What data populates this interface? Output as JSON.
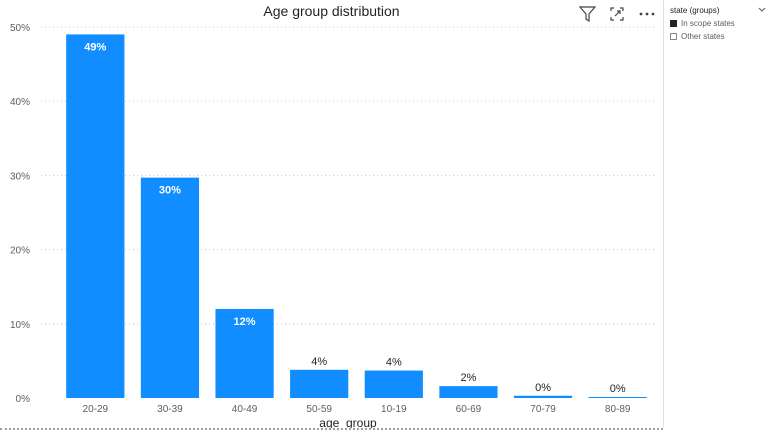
{
  "chart_data": {
    "type": "bar",
    "title": "Age group distribution",
    "xlabel": "age_group",
    "ylabel": "",
    "categories": [
      "20-29",
      "30-39",
      "40-49",
      "50-59",
      "10-19",
      "60-69",
      "70-79",
      "80-89"
    ],
    "values": [
      49,
      29.7,
      12,
      3.8,
      3.7,
      1.6,
      0.3,
      0.1
    ],
    "data_labels": [
      "49%",
      "30%",
      "12%",
      "4%",
      "4%",
      "2%",
      "0%",
      "0%"
    ],
    "ylim": [
      0,
      50
    ],
    "yticks": [
      0,
      10,
      20,
      30,
      40,
      50
    ],
    "ytick_labels": [
      "0%",
      "10%",
      "20%",
      "30%",
      "40%",
      "50%"
    ],
    "grid": "horizontal dotted",
    "legend": "right slicer",
    "bar_color": "#118DFF"
  },
  "slicer": {
    "title": "state (groups)",
    "items": [
      {
        "label": "In scope states",
        "checked": true
      },
      {
        "label": "Other states",
        "checked": false
      }
    ]
  },
  "toolbar": {
    "icons": [
      "filter-icon",
      "focus-mode-icon",
      "more-options-icon"
    ]
  }
}
